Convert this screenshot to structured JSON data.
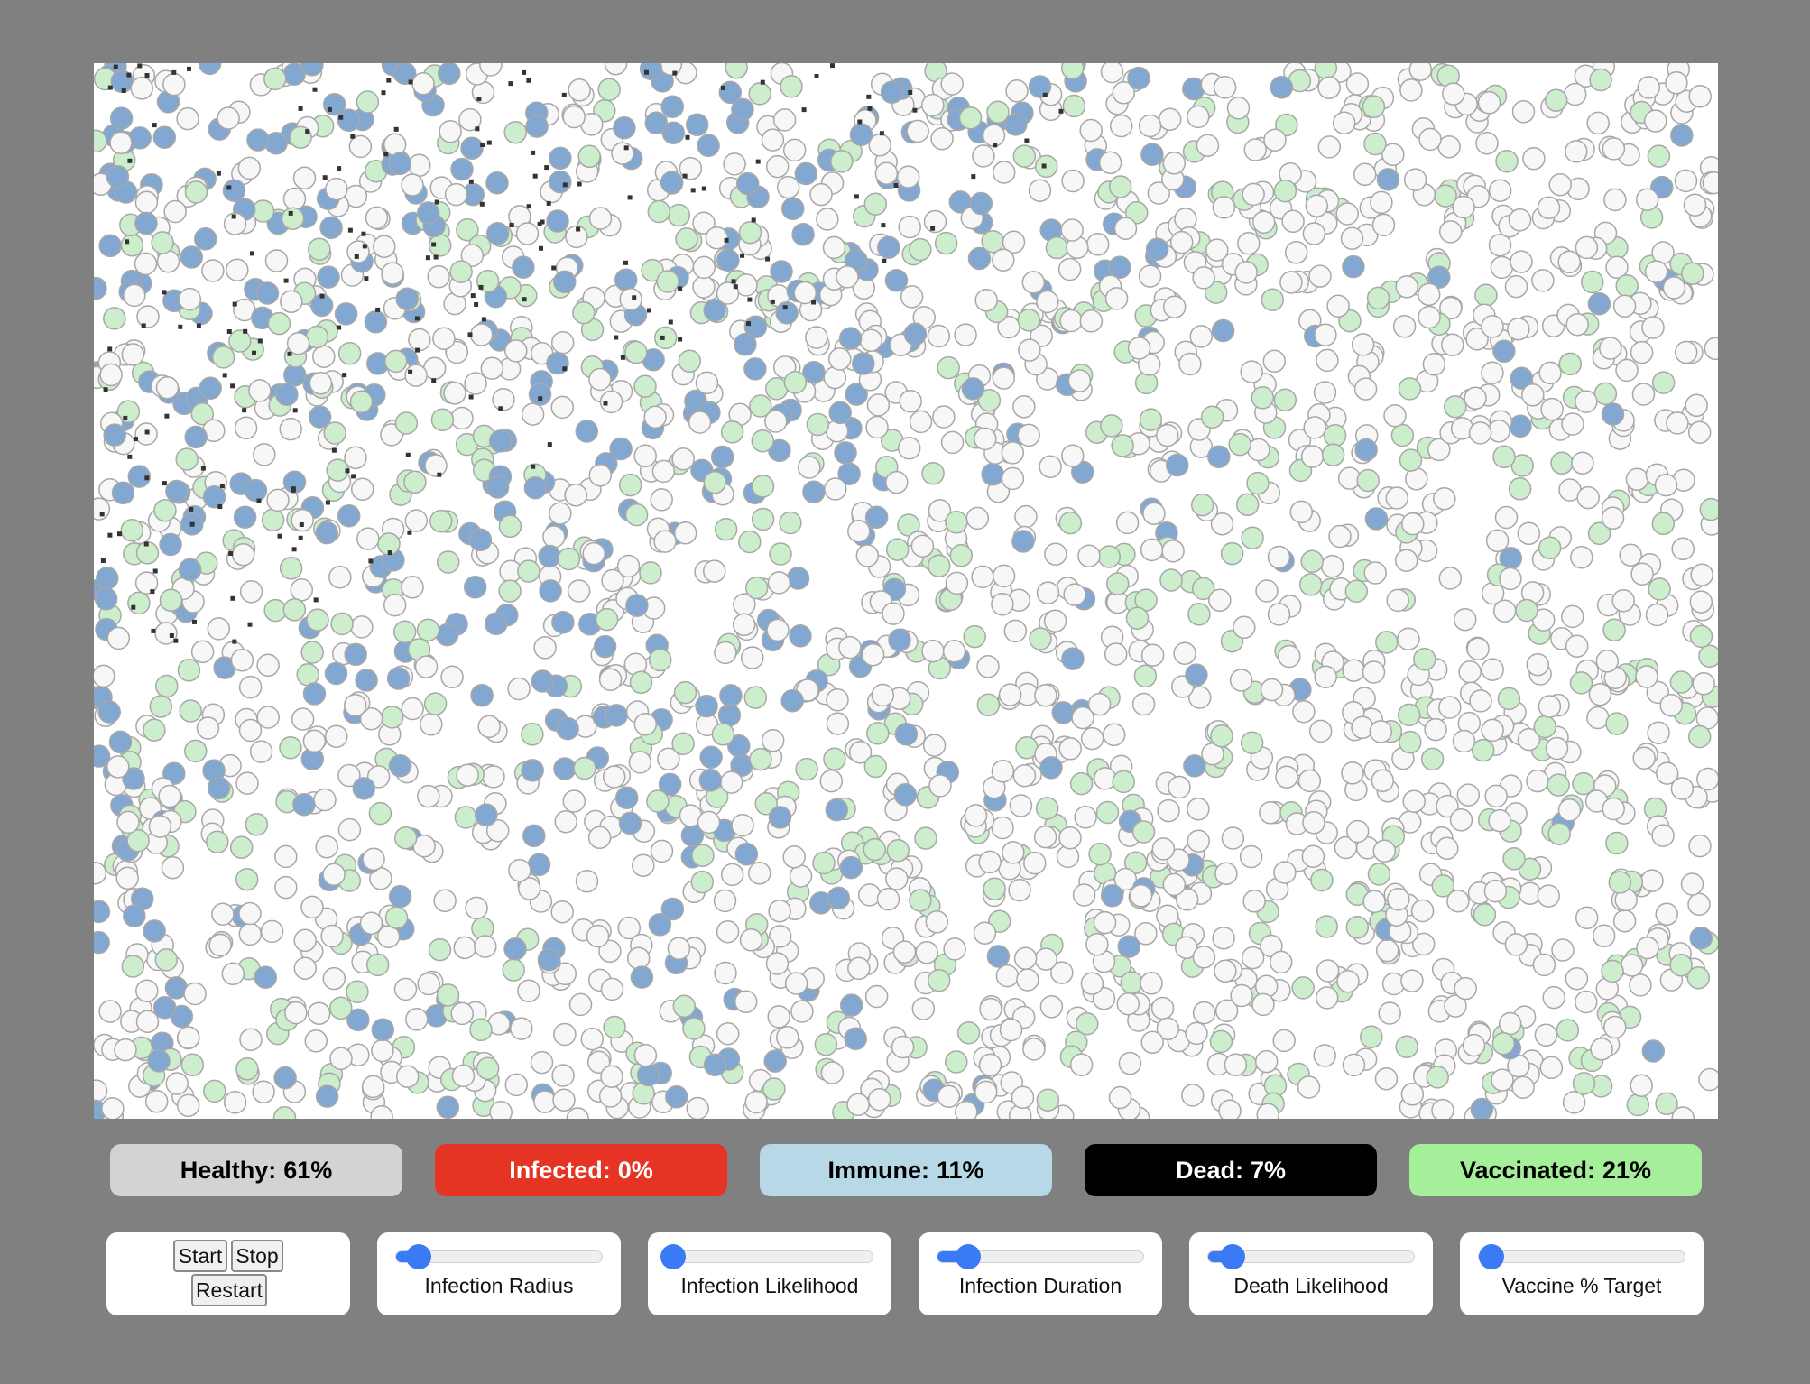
{
  "stats": [
    {
      "label": "Healthy:",
      "value": "61%",
      "bg": "#d3d3d3",
      "color": "#000000"
    },
    {
      "label": "Infected:",
      "value": "0%",
      "bg": "#e63424",
      "color": "#ffffff"
    },
    {
      "label": "Immune:",
      "value": "11%",
      "bg": "#b7d8e6",
      "color": "#000000"
    },
    {
      "label": "Dead:",
      "value": "7%",
      "bg": "#000000",
      "color": "#ffffff"
    },
    {
      "label": "Vaccinated:",
      "value": "21%",
      "bg": "#a5ee9a",
      "color": "#000000"
    }
  ],
  "controls": {
    "start_label": "Start",
    "stop_label": "Stop",
    "restart_label": "Restart",
    "sliders": [
      {
        "label": "Infection Radius",
        "value": 0.11
      },
      {
        "label": "Infection Likelihood",
        "value": 0.03
      },
      {
        "label": "Infection Duration",
        "value": 0.15
      },
      {
        "label": "Death Likelihood",
        "value": 0.12
      },
      {
        "label": "Vaccine % Target",
        "value": 0.06
      }
    ]
  },
  "simulation": {
    "population_colors": {
      "healthy": "#f7f7f7",
      "immune": "#82a7d1",
      "vaccinated": "#cdeecd",
      "dead": "#333333",
      "outline": "#a8a8a8"
    }
  },
  "theme": {
    "slider_accent": "#3a7af5",
    "page_bg": "#808080"
  }
}
